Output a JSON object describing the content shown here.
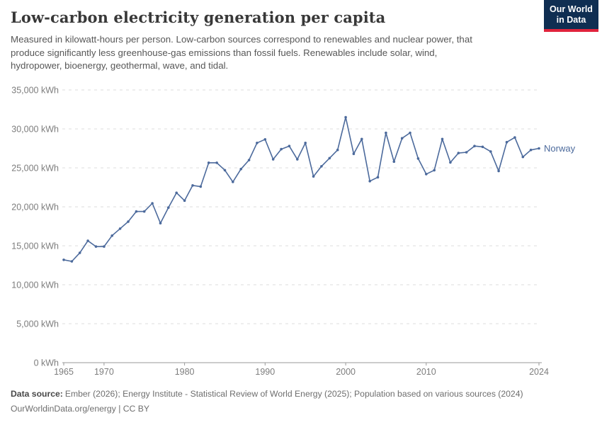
{
  "header": {
    "title": "Low-carbon electricity generation per capita",
    "subtitle_lines": [
      "Measured in kilowatt-hours per person. Low-carbon sources correspond to renewables and nuclear power, that",
      "produce significantly less greenhouse-gas emissions than fossil fuels. Renewables include solar, wind,",
      "hydropower, bioenergy, geothermal, wave, and tidal."
    ],
    "logo": {
      "line1": "Our World",
      "line2": "in Data",
      "bg_color": "#0f2e52",
      "accent_color": "#e0233c"
    }
  },
  "chart_data": {
    "type": "line",
    "title": "Low-carbon electricity generation per capita",
    "unit": "kWh per person",
    "xlabel": "Year",
    "ylabel": "kWh",
    "xlim": [
      1965,
      2024
    ],
    "ylim": [
      0,
      35000
    ],
    "grid": "horizontal dashed gridlines on",
    "legend": "end-of-line label",
    "x": [
      1965,
      1966,
      1967,
      1968,
      1969,
      1970,
      1971,
      1972,
      1973,
      1974,
      1975,
      1976,
      1977,
      1978,
      1979,
      1980,
      1981,
      1982,
      1983,
      1984,
      1985,
      1986,
      1987,
      1988,
      1989,
      1990,
      1991,
      1992,
      1993,
      1994,
      1995,
      1996,
      1997,
      1998,
      1999,
      2000,
      2001,
      2002,
      2003,
      2004,
      2005,
      2006,
      2007,
      2008,
      2009,
      2010,
      2011,
      2012,
      2013,
      2014,
      2015,
      2016,
      2017,
      2018,
      2019,
      2020,
      2021,
      2022,
      2023,
      2024
    ],
    "series": [
      {
        "name": "Norway",
        "color": "#4c6a9c",
        "values": [
          13200,
          13000,
          14100,
          15650,
          14900,
          14900,
          16300,
          17200,
          18100,
          19400,
          19400,
          20450,
          17900,
          19900,
          21800,
          20800,
          22750,
          22600,
          25650,
          25650,
          24700,
          23200,
          24850,
          26000,
          28200,
          28650,
          26100,
          27400,
          27800,
          26100,
          28200,
          23900,
          25200,
          26250,
          27300,
          31500,
          26800,
          28700,
          23300,
          23800,
          29500,
          25800,
          28800,
          29500,
          26200,
          24200,
          24700,
          28700,
          25700,
          26900,
          27000,
          27800,
          27700,
          27100,
          24600,
          28300,
          28900,
          26400,
          27300,
          27500
        ]
      }
    ],
    "y_ticks": [
      {
        "v": 0,
        "label": "0 kWh"
      },
      {
        "v": 5000,
        "label": "5,000 kWh"
      },
      {
        "v": 10000,
        "label": "10,000 kWh"
      },
      {
        "v": 15000,
        "label": "15,000 kWh"
      },
      {
        "v": 20000,
        "label": "20,000 kWh"
      },
      {
        "v": 25000,
        "label": "25,000 kWh"
      },
      {
        "v": 30000,
        "label": "30,000 kWh"
      },
      {
        "v": 35000,
        "label": "35,000 kWh"
      }
    ],
    "x_ticks": [
      {
        "v": 1965,
        "label": "1965"
      },
      {
        "v": 1970,
        "label": "1970"
      },
      {
        "v": 1980,
        "label": "1980"
      },
      {
        "v": 1990,
        "label": "1990"
      },
      {
        "v": 2000,
        "label": "2000"
      },
      {
        "v": 2010,
        "label": "2010"
      },
      {
        "v": 2024,
        "label": "2024"
      }
    ]
  },
  "footer": {
    "source_label": "Data source:",
    "source_text": "Ember (2026); Energy Institute - Statistical Review of World Energy (2025); Population based on various sources (2024)",
    "note": "OurWorldinData.org/energy | CC BY"
  }
}
